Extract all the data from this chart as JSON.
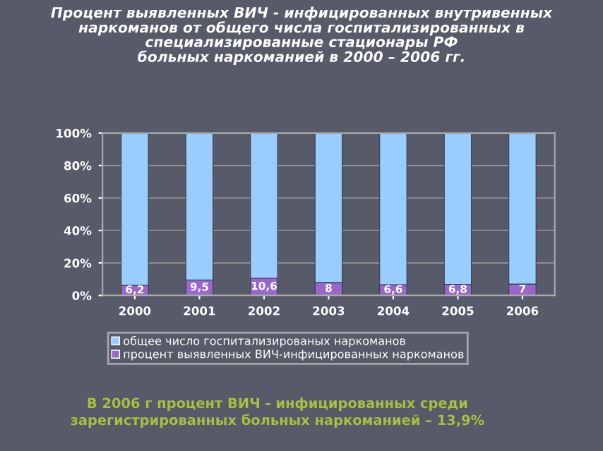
{
  "chart_data": {
    "type": "bar",
    "stacked": true,
    "title": "Процент выявленных ВИЧ - инфицированных внутривенных\nнаркоманов от общего числа госпитализированных в\nспециализированные стационары РФ\nбольных наркоманией в 2000 – 2006 гг.",
    "categories": [
      "2000",
      "2001",
      "2002",
      "2003",
      "2004",
      "2005",
      "2006"
    ],
    "series": [
      {
        "name": "процент выявленных ВИЧ-инфицированных наркоманов",
        "color": "#9966cc",
        "values": [
          6.2,
          9.5,
          10.6,
          8,
          6.6,
          6.8,
          7
        ],
        "value_labels": [
          "6,2",
          "9,5",
          "10,6",
          "8",
          "6,6",
          "6,8",
          "7"
        ]
      },
      {
        "name": "общее число госпитализированых наркоманов",
        "color": "#99ccff",
        "values": [
          93.8,
          90.5,
          89.4,
          92,
          93.4,
          93.2,
          93
        ]
      }
    ],
    "ylim": [
      0,
      100
    ],
    "yticks": [
      {
        "value": 0,
        "label": "0%"
      },
      {
        "value": 20,
        "label": "20%"
      },
      {
        "value": 40,
        "label": "40%"
      },
      {
        "value": 60,
        "label": "60%"
      },
      {
        "value": 80,
        "label": "80%"
      },
      {
        "value": 100,
        "label": "100%"
      }
    ],
    "grid": "y",
    "legend": "bottom",
    "annotations": [
      "В 2006 г процент ВИЧ - инфицированных среди\nзарегистрированных больных наркоманией – 13,9%"
    ]
  }
}
